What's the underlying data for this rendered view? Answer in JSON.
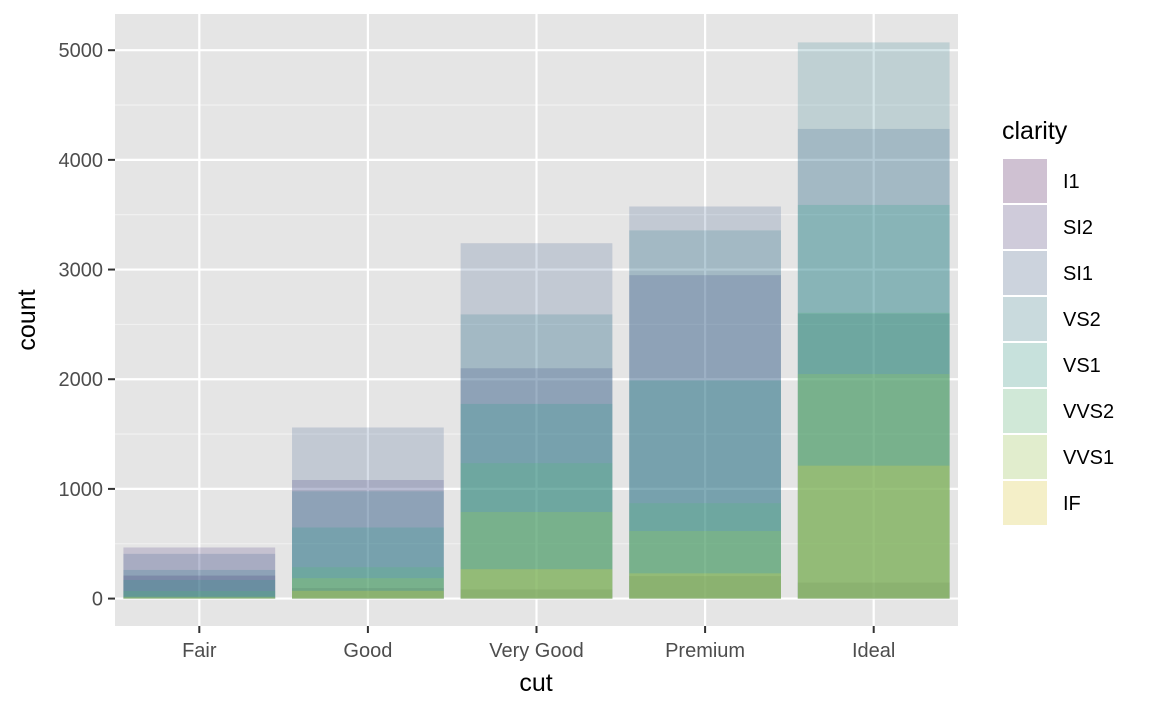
{
  "chart_data": {
    "type": "bar",
    "bar_position": "identity (overlapping, semi-transparent)",
    "xlabel": "cut",
    "ylabel": "count",
    "categories": [
      "Fair",
      "Good",
      "Very Good",
      "Premium",
      "Ideal"
    ],
    "ylim": [
      -250,
      5330
    ],
    "yticks": [
      0,
      1000,
      2000,
      3000,
      4000,
      5000
    ],
    "grid": true,
    "legend": {
      "title": "clarity",
      "position": "right"
    },
    "series": [
      {
        "name": "I1",
        "color": "#440154",
        "values": [
          210,
          96,
          84,
          205,
          146
        ]
      },
      {
        "name": "SI2",
        "color": "#46337E",
        "values": [
          466,
          1081,
          2100,
          2949,
          2598
        ]
      },
      {
        "name": "SI1",
        "color": "#365C8D",
        "values": [
          408,
          1560,
          3240,
          3575,
          4282
        ]
      },
      {
        "name": "VS2",
        "color": "#277F8E",
        "values": [
          261,
          978,
          2591,
          3357,
          5071
        ]
      },
      {
        "name": "VS1",
        "color": "#1FA187",
        "values": [
          170,
          648,
          1775,
          1989,
          3589
        ]
      },
      {
        "name": "VVS2",
        "color": "#4AC16D",
        "values": [
          69,
          286,
          1235,
          870,
          2606
        ]
      },
      {
        "name": "VVS1",
        "color": "#9FDA3A",
        "values": [
          17,
          186,
          789,
          616,
          2047
        ]
      },
      {
        "name": "IF",
        "color": "#FDE725",
        "values": [
          9,
          71,
          268,
          230,
          1212
        ]
      }
    ],
    "bar_opacity": 0.2
  }
}
